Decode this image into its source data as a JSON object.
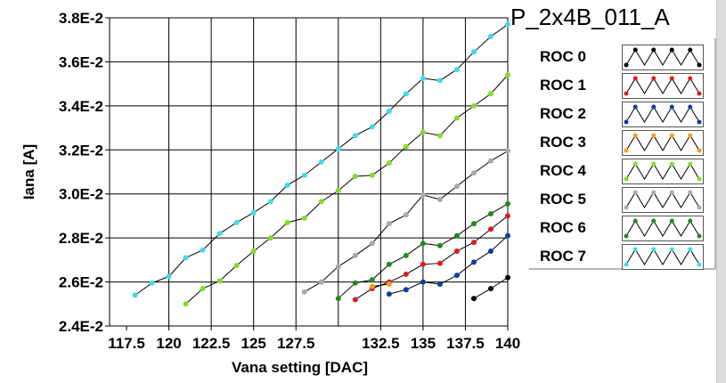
{
  "chart_data": {
    "type": "line",
    "title": "P_2x4B_011_A",
    "xlabel": "Vana setting [DAC]",
    "ylabel": "Iana [A]",
    "xlim": [
      116.5,
      140
    ],
    "ylim": [
      0.024,
      0.038
    ],
    "x_tick_labels": [
      "117.5",
      "120",
      "122.5",
      "125",
      "127.5",
      "132.5",
      "135",
      "137.5",
      "140"
    ],
    "x_ticks": [
      117.5,
      120,
      122.5,
      125,
      127.5,
      132.5,
      135,
      137.5,
      140
    ],
    "x_grid": [
      120,
      122.5,
      125,
      127.5,
      130,
      132.5,
      135,
      137.5
    ],
    "y_ticks": [
      0.024,
      0.026,
      0.028,
      0.03,
      0.032,
      0.034,
      0.036,
      0.038
    ],
    "y_tick_labels": [
      "2.4E-2",
      "2.6E-2",
      "2.8E-2",
      "3.0E-2",
      "3.2E-2",
      "3.4E-2",
      "3.6E-2",
      "3.8E-2"
    ],
    "grid": true,
    "legend_position": "right",
    "series": [
      {
        "name": "ROC 0",
        "color": "#000000",
        "x": [
          138,
          139,
          140
        ],
        "y": [
          0.02525,
          0.0257,
          0.0262
        ]
      },
      {
        "name": "ROC 1",
        "color": "#e0191e",
        "x": [
          131,
          132,
          133,
          134,
          135,
          136,
          137,
          138,
          139,
          140
        ],
        "y": [
          0.0252,
          0.0257,
          0.026,
          0.02635,
          0.0268,
          0.02685,
          0.0274,
          0.0278,
          0.0284,
          0.029
        ]
      },
      {
        "name": "ROC 2",
        "color": "#0a3ea6",
        "x": [
          133,
          134,
          135,
          136,
          137,
          138,
          139,
          140
        ],
        "y": [
          0.02545,
          0.02565,
          0.026,
          0.0259,
          0.0263,
          0.0269,
          0.0274,
          0.0281
        ]
      },
      {
        "name": "ROC 3",
        "color": "#ff9a1a",
        "x": [
          132,
          133
        ],
        "y": [
          0.0258,
          0.0259
        ]
      },
      {
        "name": "ROC 4",
        "color": "#7fe023",
        "x": [
          121,
          122,
          123,
          124,
          125,
          126,
          127,
          128,
          129,
          130,
          131,
          132,
          133,
          134,
          135,
          136,
          137,
          138,
          139,
          140
        ],
        "y": [
          0.025,
          0.0257,
          0.02605,
          0.02675,
          0.0274,
          0.028,
          0.0287,
          0.0289,
          0.02965,
          0.03015,
          0.0308,
          0.03085,
          0.0314,
          0.03215,
          0.0328,
          0.03265,
          0.03345,
          0.034,
          0.03455,
          0.0354
        ]
      },
      {
        "name": "ROC 5",
        "color": "#a9a9a9",
        "x": [
          128,
          129,
          130,
          131,
          132,
          133,
          134,
          135,
          136,
          137,
          138,
          139,
          140
        ],
        "y": [
          0.02555,
          0.026,
          0.0267,
          0.0272,
          0.02775,
          0.02865,
          0.02905,
          0.02995,
          0.02975,
          0.03035,
          0.03095,
          0.0315,
          0.03195
        ]
      },
      {
        "name": "ROC 6",
        "color": "#1e8c1e",
        "x": [
          130,
          131,
          132,
          133,
          134,
          135,
          136,
          137,
          138,
          139,
          140
        ],
        "y": [
          0.02525,
          0.02595,
          0.0261,
          0.0268,
          0.0272,
          0.02775,
          0.02765,
          0.0281,
          0.02865,
          0.0291,
          0.02955
        ]
      },
      {
        "name": "ROC 7",
        "color": "#3ddcf0",
        "x": [
          118,
          119,
          120,
          121,
          122,
          123,
          124,
          125,
          126,
          127,
          128,
          129,
          130,
          131,
          132,
          133,
          134,
          135,
          136,
          137,
          138,
          139,
          140
        ],
        "y": [
          0.0254,
          0.02595,
          0.02625,
          0.0271,
          0.02745,
          0.0282,
          0.0287,
          0.02915,
          0.02965,
          0.0304,
          0.03085,
          0.03145,
          0.03205,
          0.03265,
          0.03305,
          0.03375,
          0.03455,
          0.03525,
          0.03515,
          0.03565,
          0.03645,
          0.03715,
          0.0377
        ]
      }
    ]
  }
}
